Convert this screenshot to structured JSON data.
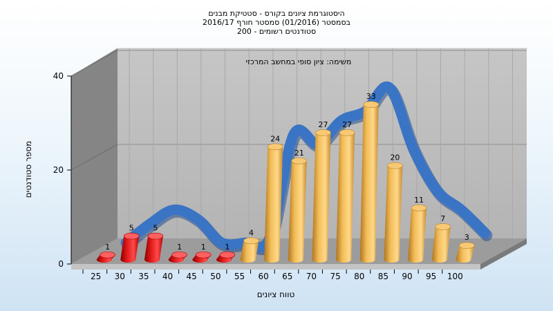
{
  "titles": {
    "line1": "היסטוגרמת ציונים בקורס - סטטיקת מבנים",
    "line2": "בסמסטר  (01/2016)  סמסטר חורף 2016/17",
    "line3": "סטודנטים רשומים - 200"
  },
  "colors": {
    "fail_bar": "#e01a1a",
    "pass_bar": "#e8a83a",
    "curve": "#3a74c4",
    "plot_back": "#bfbfbf",
    "left_wall": "#858585",
    "floor": "#9a9a9a"
  },
  "chart_data": {
    "type": "bar",
    "title": "היסטוגרמת ציונים בקורס - סטטיקת מבנים",
    "subtitle": "משימה: ציון סופי במחשב המרכזי",
    "xlabel": "טווח ציונים",
    "ylabel": "מספר סטודנטים",
    "ylim": [
      0,
      40
    ],
    "yticks": [
      0,
      20,
      40
    ],
    "categories": [
      "25",
      "30",
      "35",
      "40",
      "45",
      "50",
      "55",
      "60",
      "65",
      "70",
      "75",
      "80",
      "85",
      "90",
      "95",
      "100"
    ],
    "values": [
      1,
      5,
      5,
      1,
      1,
      1,
      4,
      24,
      21,
      27,
      27,
      33,
      20,
      11,
      7,
      3
    ],
    "fail_threshold": 55,
    "curve": [
      1,
      5,
      8,
      6,
      1,
      1,
      2,
      24,
      22,
      27,
      29,
      34,
      21,
      12,
      8,
      3
    ],
    "grid": true,
    "legend": "none"
  }
}
